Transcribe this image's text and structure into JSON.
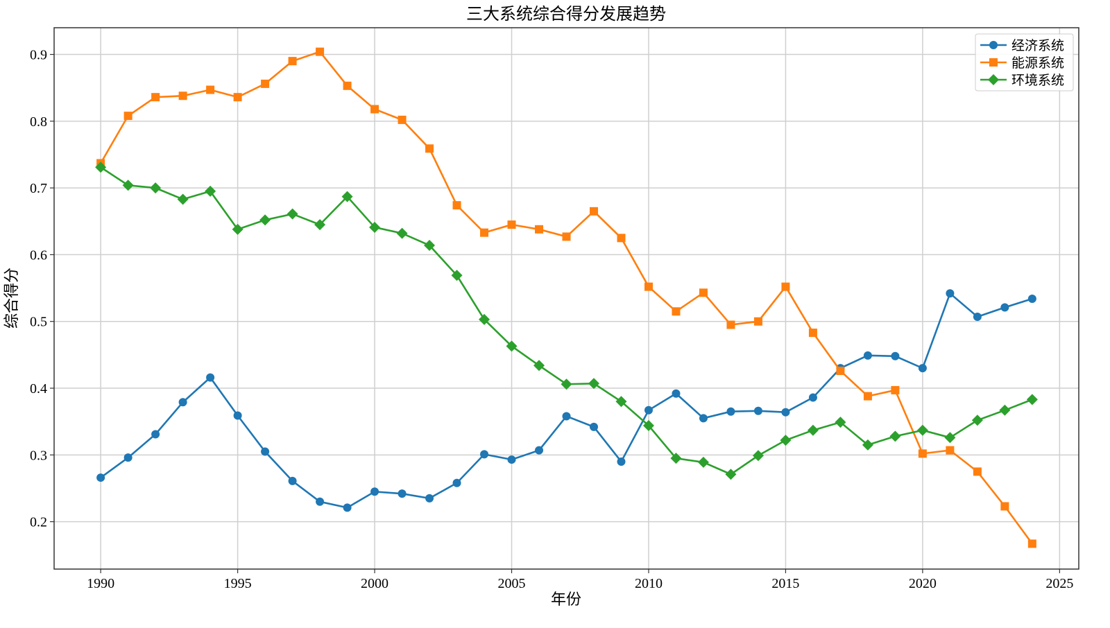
{
  "chart_data": {
    "type": "line",
    "title": "三大系统综合得分发展趋势",
    "xlabel": "年份",
    "ylabel": "综合得分",
    "xlim": [
      1988.3,
      2025.7
    ],
    "ylim": [
      0.129,
      0.94
    ],
    "xticks": [
      1990,
      1995,
      2000,
      2005,
      2010,
      2015,
      2020,
      2025
    ],
    "yticks": [
      0.2,
      0.3,
      0.4,
      0.5,
      0.6,
      0.7,
      0.8,
      0.9
    ],
    "grid": true,
    "legend_position": "top-right",
    "x": [
      1990,
      1991,
      1992,
      1993,
      1994,
      1995,
      1996,
      1997,
      1998,
      1999,
      2000,
      2001,
      2002,
      2003,
      2004,
      2005,
      2006,
      2007,
      2008,
      2009,
      2010,
      2011,
      2012,
      2013,
      2014,
      2015,
      2016,
      2017,
      2018,
      2019,
      2020,
      2021,
      2022,
      2023,
      2024
    ],
    "series": [
      {
        "name": "经济系统",
        "color": "#1f77b4",
        "marker": "circle",
        "values": [
          0.266,
          0.296,
          0.331,
          0.379,
          0.416,
          0.359,
          0.305,
          0.261,
          0.23,
          0.221,
          0.245,
          0.242,
          0.235,
          0.258,
          0.301,
          0.293,
          0.307,
          0.358,
          0.342,
          0.29,
          0.367,
          0.392,
          0.355,
          0.365,
          0.366,
          0.364,
          0.386,
          0.43,
          0.449,
          0.448,
          0.43,
          0.542,
          0.507,
          0.521,
          0.534
        ]
      },
      {
        "name": "能源系统",
        "color": "#ff7f0e",
        "marker": "square",
        "values": [
          0.737,
          0.808,
          0.836,
          0.838,
          0.847,
          0.836,
          0.856,
          0.89,
          0.904,
          0.853,
          0.818,
          0.802,
          0.759,
          0.674,
          0.633,
          0.645,
          0.638,
          0.627,
          0.665,
          0.625,
          0.552,
          0.515,
          0.543,
          0.495,
          0.5,
          0.552,
          0.483,
          0.426,
          0.388,
          0.397,
          0.302,
          0.307,
          0.275,
          0.223,
          0.167
        ]
      },
      {
        "name": "环境系统",
        "color": "#2ca02c",
        "marker": "diamond",
        "values": [
          0.731,
          0.704,
          0.7,
          0.683,
          0.695,
          0.638,
          0.652,
          0.661,
          0.645,
          0.687,
          0.641,
          0.632,
          0.614,
          0.569,
          0.503,
          0.463,
          0.434,
          0.406,
          0.407,
          0.38,
          0.344,
          0.295,
          0.289,
          0.271,
          0.299,
          0.322,
          0.337,
          0.349,
          0.315,
          0.328,
          0.337,
          0.326,
          0.352,
          0.367,
          0.383
        ]
      }
    ]
  }
}
